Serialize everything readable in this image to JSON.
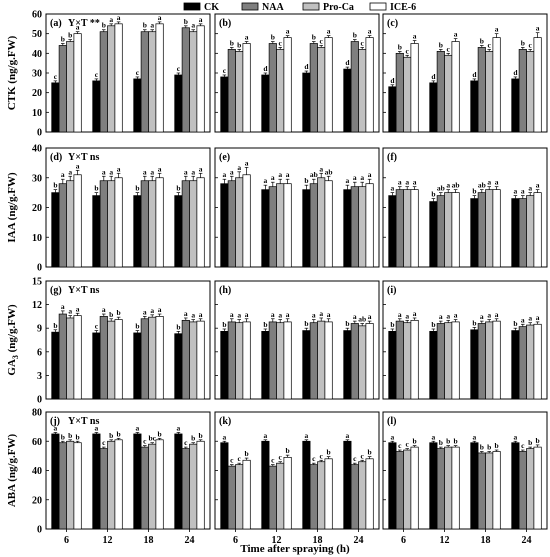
{
  "legend": [
    {
      "name": "CK",
      "color": "#000000"
    },
    {
      "name": "NAA",
      "color": "#7f7f7f"
    },
    {
      "name": "Pro-Ca",
      "color": "#c0c0c0"
    },
    {
      "name": "ICE-6",
      "color": "#ffffff"
    }
  ],
  "x_axis_title": "Time after spraying (h)",
  "categories": [
    "6",
    "12",
    "18",
    "24"
  ],
  "chart_data": [
    {
      "row": "CTK",
      "type": "bar",
      "ylabel": "CTK (ng/g.FW)",
      "ylim": [
        0,
        60
      ],
      "yticks": [
        "0",
        "10",
        "20",
        "30",
        "40",
        "50",
        "60"
      ],
      "panels": [
        {
          "label": "(a)",
          "annotation": "Y×T **",
          "values": [
            [
              25,
              44,
              46,
              50
            ],
            [
              26,
              51,
              54,
              55
            ],
            [
              27,
              51,
              51,
              55
            ],
            [
              29,
              53,
              51,
              54
            ]
          ],
          "letters": [
            [
              "c",
              "b",
              "b",
              "a"
            ],
            [
              "c",
              "b",
              "a",
              "a"
            ],
            [
              "c",
              "b",
              "a",
              "a"
            ],
            [
              "c",
              "b",
              "a",
              "a"
            ]
          ],
          "err": [
            [
              1,
              1,
              1,
              1
            ],
            [
              1,
              1,
              1,
              1
            ],
            [
              1,
              1,
              1,
              1
            ],
            [
              1,
              1,
              1,
              1
            ]
          ]
        },
        {
          "label": "(b)",
          "annotation": "",
          "values": [
            [
              28,
              42,
              41,
              45
            ],
            [
              29,
              45,
              42,
              48
            ],
            [
              30,
              45,
              43,
              48
            ],
            [
              32,
              46,
              42,
              48
            ]
          ],
          "letters": [
            [
              "c",
              "b",
              "b",
              "a"
            ],
            [
              "d",
              "b",
              "c",
              "a"
            ],
            [
              "d",
              "b",
              "c",
              "a"
            ],
            [
              "d",
              "b",
              "c",
              "a"
            ]
          ],
          "err": [
            [
              1,
              1,
              1,
              1
            ],
            [
              1,
              1,
              1,
              1
            ],
            [
              1,
              1,
              1,
              1
            ],
            [
              1,
              1,
              1,
              1
            ]
          ]
        },
        {
          "label": "(c)",
          "annotation": "",
          "values": [
            [
              23,
              40,
              38,
              45
            ],
            [
              25,
              41,
              39,
              46
            ],
            [
              26,
              43,
              41,
              48
            ],
            [
              27,
              42,
              41,
              48
            ]
          ],
          "letters": [
            [
              "d",
              "b",
              "c",
              "a"
            ],
            [
              "d",
              "b",
              "c",
              "a"
            ],
            [
              "d",
              "b",
              "c",
              "a"
            ],
            [
              "d",
              "b",
              "c",
              "a"
            ]
          ],
          "err": [
            [
              1,
              1,
              1,
              1.5
            ],
            [
              1,
              1,
              1,
              1.5
            ],
            [
              1,
              1,
              1,
              2
            ],
            [
              1,
              1,
              1,
              2.5
            ]
          ]
        }
      ]
    },
    {
      "row": "IAA",
      "type": "bar",
      "ylabel": "IAA (ng/g.FW)",
      "ylim": [
        0,
        40
      ],
      "yticks": [
        "0",
        "10",
        "20",
        "30",
        "40"
      ],
      "panels": [
        {
          "label": "(d)",
          "annotation": "Y×T ns",
          "values": [
            [
              25,
              28,
              29,
              31
            ],
            [
              24,
              29,
              29,
              30
            ],
            [
              24,
              29,
              29,
              30
            ],
            [
              24,
              29,
              29,
              30
            ]
          ],
          "letters": [
            [
              "b",
              "a",
              "a",
              "a"
            ],
            [
              "b",
              "a",
              "a",
              "a"
            ],
            [
              "b",
              "a",
              "a",
              "a"
            ],
            [
              "b",
              "a",
              "a",
              "a"
            ]
          ],
          "err": [
            [
              1,
              1.5,
              1.5,
              1.5
            ],
            [
              1,
              1.5,
              1.5,
              1.5
            ],
            [
              1,
              1.5,
              1.5,
              1.5
            ],
            [
              1,
              1.5,
              1.5,
              1.5
            ]
          ]
        },
        {
          "label": "(e)",
          "annotation": "",
          "values": [
            [
              28,
              29,
              30,
              31
            ],
            [
              26,
              27,
              28,
              28
            ],
            [
              26,
              28,
              30,
              29
            ],
            [
              26,
              27,
              27,
              28
            ]
          ],
          "letters": [
            [
              "a",
              "a",
              "a",
              "a"
            ],
            [
              "a",
              "a",
              "a",
              "a"
            ],
            [
              "b",
              "ab",
              "a",
              "ab"
            ],
            [
              "a",
              "a",
              "a",
              "a"
            ]
          ],
          "err": [
            [
              1.5,
              1.5,
              2,
              2.5
            ],
            [
              1.5,
              1.5,
              1.5,
              1.5
            ],
            [
              1.5,
              1.5,
              1.5,
              1.5
            ],
            [
              1.5,
              1.5,
              1.5,
              1.5
            ]
          ]
        },
        {
          "label": "(f)",
          "annotation": "",
          "values": [
            [
              24,
              26,
              26,
              26
            ],
            [
              22,
              24,
              25,
              25
            ],
            [
              23,
              25,
              26,
              26
            ],
            [
              23,
              23,
              24,
              25
            ]
          ],
          "letters": [
            [
              "a",
              "a",
              "a",
              "a"
            ],
            [
              "b",
              "ab",
              "a",
              "ab"
            ],
            [
              "b",
              "ab",
              "a",
              "a"
            ],
            [
              "a",
              "a",
              "a",
              "a"
            ]
          ],
          "err": [
            [
              1,
              1,
              1,
              1
            ],
            [
              1,
              1,
              1,
              1
            ],
            [
              1,
              1,
              1,
              1
            ],
            [
              1,
              1,
              1,
              1
            ]
          ]
        }
      ]
    },
    {
      "row": "GA3",
      "type": "bar",
      "ylabel": "GA3 (ng/g.FW)",
      "ylim": [
        0,
        15
      ],
      "yticks": [
        "0",
        "3",
        "6",
        "9",
        "12",
        "15"
      ],
      "panels": [
        {
          "label": "(g)",
          "annotation": "Y×T ns",
          "values": [
            [
              8.5,
              10.8,
              10.3,
              10.6
            ],
            [
              8.4,
              10.5,
              9.9,
              10.1
            ],
            [
              8.4,
              10.2,
              10.4,
              10.5
            ],
            [
              8.3,
              10.0,
              9.8,
              9.9
            ]
          ],
          "letters": [
            [
              "b",
              "a",
              "a",
              "a"
            ],
            [
              "c",
              "a",
              "b",
              "b"
            ],
            [
              "b",
              "a",
              "a",
              "a"
            ],
            [
              "b",
              "a",
              "a",
              "a"
            ]
          ],
          "err": [
            [
              0.3,
              0.4,
              0.3,
              0.3
            ],
            [
              0.3,
              0.3,
              0.3,
              0.3
            ],
            [
              0.3,
              0.3,
              0.3,
              0.3
            ],
            [
              0.3,
              0.3,
              0.3,
              0.3
            ]
          ]
        },
        {
          "label": "(h)",
          "annotation": "",
          "values": [
            [
              8.6,
              9.8,
              9.7,
              9.8
            ],
            [
              8.6,
              9.8,
              9.7,
              9.8
            ],
            [
              8.7,
              9.7,
              9.9,
              9.8
            ],
            [
              8.7,
              9.6,
              9.3,
              9.6
            ]
          ],
          "letters": [
            [
              "b",
              "a",
              "a",
              "a"
            ],
            [
              "b",
              "a",
              "a",
              "a"
            ],
            [
              "b",
              "a",
              "a",
              "a"
            ],
            [
              "b",
              "a",
              "ab",
              "a"
            ]
          ],
          "err": [
            [
              0.3,
              0.4,
              0.4,
              0.4
            ],
            [
              0.3,
              0.4,
              0.4,
              0.4
            ],
            [
              0.3,
              0.4,
              0.4,
              0.4
            ],
            [
              0.3,
              0.3,
              0.3,
              0.3
            ]
          ]
        },
        {
          "label": "(i)",
          "annotation": "",
          "values": [
            [
              8.6,
              9.9,
              9.7,
              10.0
            ],
            [
              8.6,
              9.6,
              9.7,
              9.8
            ],
            [
              8.8,
              9.6,
              9.8,
              9.9
            ],
            [
              8.7,
              9.2,
              9.4,
              9.5
            ]
          ],
          "letters": [
            [
              "b",
              "a",
              "a",
              "a"
            ],
            [
              "b",
              "a",
              "a",
              "a"
            ],
            [
              "b",
              "a",
              "a",
              "a"
            ],
            [
              "b",
              "a",
              "a",
              "a"
            ]
          ],
          "err": [
            [
              0.3,
              0.3,
              0.3,
              0.3
            ],
            [
              0.3,
              0.3,
              0.3,
              0.3
            ],
            [
              0.3,
              0.3,
              0.3,
              0.3
            ],
            [
              0.3,
              0.3,
              0.3,
              0.3
            ]
          ]
        }
      ]
    },
    {
      "row": "ABA",
      "type": "bar",
      "ylabel": "ABA (ng/g.FW)",
      "ylim": [
        0,
        80
      ],
      "yticks": [
        "0",
        "20",
        "40",
        "60",
        "80"
      ],
      "panels": [
        {
          "label": "(j)",
          "annotation": "Y×T ns",
          "values": [
            [
              65,
              59,
              60,
              59
            ],
            [
              65,
              55,
              60,
              61
            ],
            [
              65,
              56,
              58,
              61
            ],
            [
              65,
              55,
              58,
              60
            ]
          ],
          "letters": [
            [
              "a",
              "b",
              "b",
              "b"
            ],
            [
              "a",
              "c",
              "b",
              "b"
            ],
            [
              "a",
              "c",
              "bc",
              "b"
            ],
            [
              "a",
              "c",
              "b",
              "b"
            ]
          ],
          "err": [
            [
              1,
              1,
              1,
              1
            ],
            [
              1,
              1,
              1,
              1
            ],
            [
              1,
              1,
              1,
              1
            ],
            [
              1,
              1,
              1,
              1
            ]
          ]
        },
        {
          "label": "(k)",
          "annotation": "",
          "values": [
            [
              59,
              43,
              44,
              47
            ],
            [
              60,
              43,
              45,
              49
            ],
            [
              60,
              44,
              46,
              48
            ],
            [
              60,
              44,
              46,
              48
            ]
          ],
          "letters": [
            [
              "a",
              "c",
              "c",
              "b"
            ],
            [
              "a",
              "c",
              "c",
              "b"
            ],
            [
              "a",
              "c",
              "c",
              "b"
            ],
            [
              "a",
              "c",
              "c",
              "b"
            ]
          ],
          "err": [
            [
              1,
              1,
              1,
              1.5
            ],
            [
              1,
              1,
              1,
              1.5
            ],
            [
              1,
              1,
              1,
              1.5
            ],
            [
              1,
              1,
              1,
              1.5
            ]
          ]
        },
        {
          "label": "(l)",
          "annotation": "",
          "values": [
            [
              59,
              53,
              54,
              56
            ],
            [
              59,
              55,
              56,
              56
            ],
            [
              59,
              52,
              52,
              53
            ],
            [
              59,
              53,
              55,
              56
            ]
          ],
          "letters": [
            [
              "a",
              "c",
              "c",
              "b"
            ],
            [
              "a",
              "b",
              "b",
              "b"
            ],
            [
              "a",
              "b",
              "b",
              "b"
            ],
            [
              "a",
              "c",
              "b",
              "b"
            ]
          ],
          "err": [
            [
              1,
              1,
              1,
              1
            ],
            [
              1,
              1,
              1,
              1
            ],
            [
              1,
              1,
              1,
              1
            ],
            [
              1,
              1,
              1,
              1.5
            ]
          ]
        }
      ]
    }
  ]
}
